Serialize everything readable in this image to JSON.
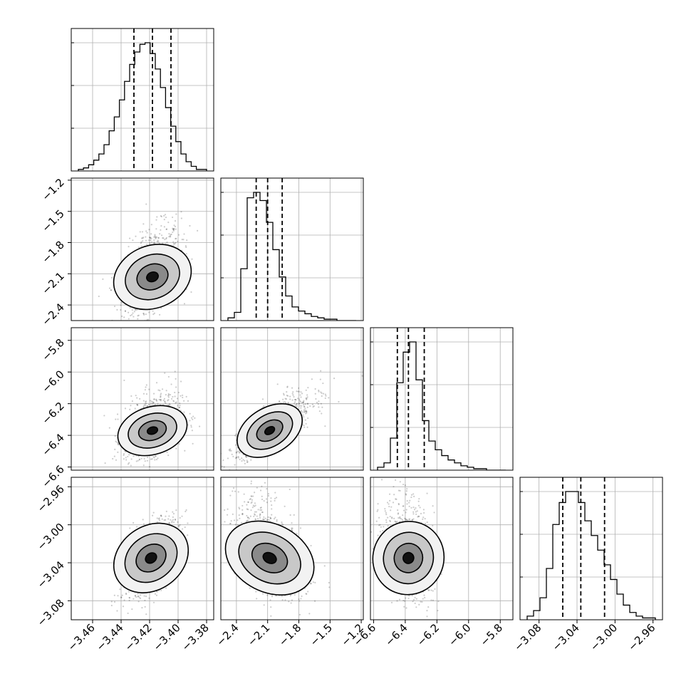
{
  "chart_data": {
    "type": "corner",
    "colors": {
      "line": "#000000",
      "grid": "#b0b0b0",
      "background": "#ffffff"
    },
    "grid": true,
    "params": [
      {
        "range": [
          -3.475,
          -3.375
        ],
        "ticks": [
          -3.46,
          -3.44,
          -3.42,
          -3.4,
          -3.38
        ],
        "tick_labels": [
          "−3.46",
          "−3.44",
          "−3.42",
          "−3.40",
          "−3.38"
        ],
        "quantiles": [
          -3.431,
          -3.418,
          -3.405
        ]
      },
      {
        "range": [
          -2.55,
          -1.18
        ],
        "ticks": [
          -2.4,
          -2.1,
          -1.8,
          -1.5,
          -1.2
        ],
        "tick_labels": [
          "−2.4",
          "−2.1",
          "−1.8",
          "−1.5",
          "−1.2"
        ],
        "quantiles": [
          -2.21,
          -2.1,
          -1.96
        ]
      },
      {
        "range": [
          -6.62,
          -5.72
        ],
        "ticks": [
          -6.6,
          -6.4,
          -6.2,
          -6.0,
          -5.8
        ],
        "tick_labels": [
          "−6.6",
          "−6.4",
          "−6.2",
          "−6.0",
          "−5.8"
        ],
        "quantiles": [
          -6.45,
          -6.38,
          -6.28
        ]
      },
      {
        "range": [
          -3.1,
          -2.95
        ],
        "ticks": [
          -3.08,
          -3.04,
          -3.0,
          -2.96
        ],
        "tick_labels": [
          "−3.08",
          "−3.04",
          "−3.00",
          "−2.96"
        ],
        "quantiles": [
          -3.055,
          -3.036,
          -3.011
        ]
      }
    ],
    "histograms": [
      [
        1,
        2,
        4,
        7,
        11,
        17,
        26,
        35,
        46,
        58,
        69,
        77,
        82,
        83,
        76,
        66,
        54,
        41,
        29,
        19,
        11,
        6,
        3,
        1,
        1
      ],
      [
        2,
        6,
        38,
        90,
        94,
        88,
        72,
        52,
        32,
        18,
        10,
        7,
        5,
        3,
        2,
        1,
        1,
        0,
        0,
        0
      ],
      [
        2,
        5,
        22,
        60,
        81,
        88,
        62,
        34,
        20,
        14,
        10,
        7,
        5,
        3,
        2,
        1,
        1,
        0,
        0,
        0
      ],
      [
        2,
        5,
        12,
        28,
        52,
        64,
        70,
        70,
        64,
        54,
        46,
        38,
        30,
        22,
        14,
        8,
        4,
        2,
        1,
        1
      ]
    ],
    "pairs": [
      {
        "x": 0,
        "y": 1,
        "center": [
          -3.418,
          -2.13
        ],
        "sd": [
          0.01,
          0.16
        ],
        "corr": 0.35,
        "skew": 0.5
      },
      {
        "x": 0,
        "y": 2,
        "center": [
          -3.418,
          -6.37
        ],
        "sd": [
          0.01,
          0.08
        ],
        "corr": 0.35,
        "skew": 0.5
      },
      {
        "x": 1,
        "y": 2,
        "center": [
          -2.08,
          -6.37
        ],
        "sd": [
          0.16,
          0.08
        ],
        "corr": 0.8,
        "skew": 0.5
      },
      {
        "x": 0,
        "y": 3,
        "center": [
          -3.419,
          -3.035
        ],
        "sd": [
          0.01,
          0.02
        ],
        "corr": 0.55,
        "skew": 0.0
      },
      {
        "x": 1,
        "y": 3,
        "center": [
          -2.08,
          -3.035
        ],
        "sd": [
          0.16,
          0.02
        ],
        "corr": -0.45,
        "skew": 0.5
      },
      {
        "x": 2,
        "y": 3,
        "center": [
          -6.38,
          -3.035
        ],
        "sd": [
          0.08,
          0.02
        ],
        "corr": -0.25,
        "skew": 0.5
      }
    ]
  }
}
